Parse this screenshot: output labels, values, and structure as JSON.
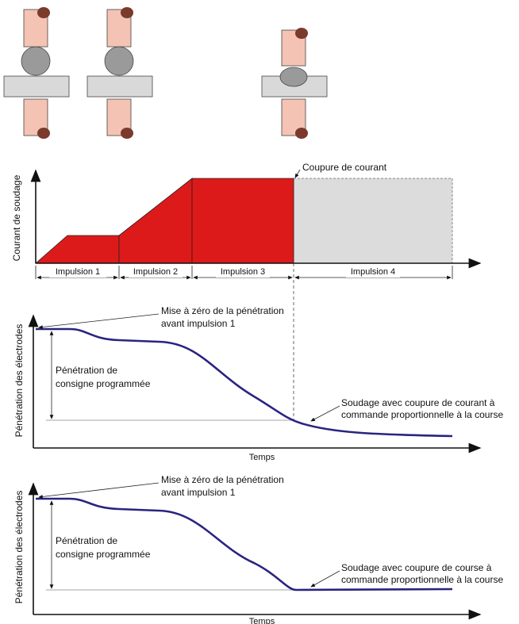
{
  "current_chart": {
    "y_label": "Courant de soudage",
    "annotation": "Coupure de courant",
    "pulses": [
      "Impulsion 1",
      "Impulsion 2",
      "Impulsion 3",
      "Impulsion 4"
    ]
  },
  "penetration_charts": [
    {
      "y_label": "Pénétration des électrodes",
      "zero_note": [
        "Mise à zéro de la pénétration",
        "avant impulsion 1"
      ],
      "setpoint_note": [
        "Pénétration de",
        "consigne programmée"
      ],
      "end_note": [
        "Soudage avec coupure de courant à",
        "commande proportionnelle à la course"
      ],
      "x_label": "Temps"
    },
    {
      "y_label": "Pénétration des électrodes",
      "zero_note": [
        "Mise à zéro de la pénétration",
        "avant impulsion 1"
      ],
      "setpoint_note": [
        "Pénétration de",
        "consigne programmée"
      ],
      "end_note": [
        "Soudage avec coupure de course à",
        "commande proportionnelle à la course"
      ],
      "x_label": "Temps"
    }
  ]
}
